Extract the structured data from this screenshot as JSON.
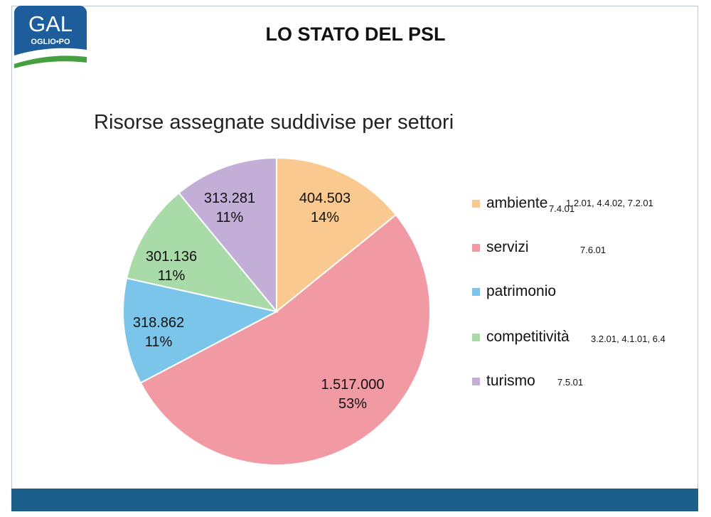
{
  "header": {
    "logo_text": "GAL",
    "logo_subtext": "OGLIO•PO",
    "title": "LO STATO DEL PSL"
  },
  "colors": {
    "ambiente": "#fac98f",
    "servizi": "#f19aa3",
    "patrimonio": "#7cc5ea",
    "competitivita": "#a8dba8",
    "turismo": "#c2aed6",
    "logo_blue": "#1d5d9b",
    "logo_green": "#46a040",
    "bottom_bar": "#1a5e89"
  },
  "chart_data": {
    "type": "pie",
    "title": "Risorse assegnate suddivise per settori",
    "legend_position": "right",
    "slices": [
      {
        "name": "ambiente",
        "value": 404503,
        "value_label": "404.503",
        "percent_label": "14%",
        "color": "#fac98f"
      },
      {
        "name": "servizi",
        "value": 1517000,
        "value_label": "1.517.000",
        "percent_label": "53%",
        "color": "#f19aa3"
      },
      {
        "name": "patrimonio",
        "value": 318862,
        "value_label": "318.862",
        "percent_label": "11%",
        "color": "#7cc5ea"
      },
      {
        "name": "competitività",
        "value": 301136,
        "value_label": "301.136",
        "percent_label": "11%",
        "color": "#a8dba8"
      },
      {
        "name": "turismo",
        "value": 313281,
        "value_label": "313.281",
        "percent_label": "11%",
        "color": "#c2aed6"
      }
    ]
  },
  "legend_notes": {
    "ambiente_codes": "1.2.01, 4.4.02, 7.2.01",
    "ambiente_extra": "7.4.01",
    "servizi_codes": "7.6.01",
    "competitivita_codes": "3.2.01, 4.1.01, 6.4",
    "turismo_codes": "7.5.01"
  }
}
